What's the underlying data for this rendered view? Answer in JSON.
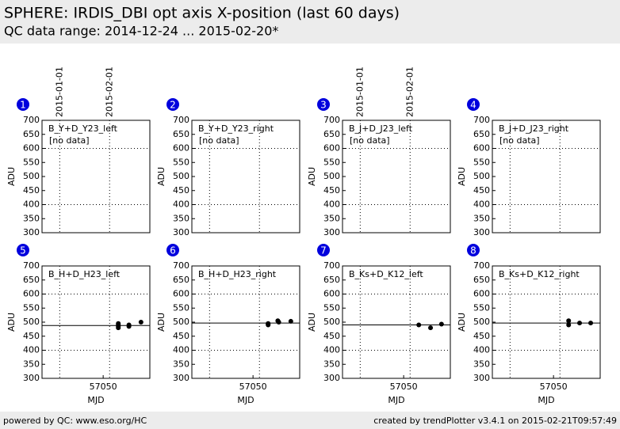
{
  "header": {
    "title": "SPHERE: IRDIS_DBI opt axis X-position (last 60 days)",
    "subtitle": "QC data range: 2014-12-24 ... 2015-02-20*"
  },
  "chart_data": [
    {
      "type": "scatter",
      "panel": "1",
      "title": "B_Y+D_Y23_left",
      "note": "[no data]",
      "ylabel": "ADU",
      "x": [],
      "values": [],
      "xlim": [
        57012,
        57079
      ],
      "ylim": [
        300,
        700
      ],
      "yticks": [
        300,
        350,
        400,
        450,
        500,
        550,
        600,
        650,
        700
      ],
      "grid_y": [
        400,
        600
      ],
      "vlines": [
        {
          "value": 57023,
          "label": "2015-01-01"
        },
        {
          "value": 57054,
          "label": "2015-02-01"
        }
      ],
      "color": "#000000"
    },
    {
      "type": "scatter",
      "panel": "2",
      "title": "B_Y+D_Y23_right",
      "note": "[no data]",
      "ylabel": "ADU",
      "x": [],
      "values": [],
      "xlim": [
        57012,
        57079
      ],
      "ylim": [
        300,
        700
      ],
      "yticks": [
        300,
        350,
        400,
        450,
        500,
        550,
        600,
        650,
        700
      ],
      "grid_y": [
        400,
        600
      ],
      "vlines": [
        57023,
        57054
      ],
      "color": "#000000"
    },
    {
      "type": "scatter",
      "panel": "3",
      "title": "B_J+D_J23_left",
      "note": "[no data]",
      "ylabel": "ADU",
      "x": [],
      "values": [],
      "xlim": [
        57012,
        57079
      ],
      "ylim": [
        300,
        700
      ],
      "yticks": [
        300,
        350,
        400,
        450,
        500,
        550,
        600,
        650,
        700
      ],
      "grid_y": [
        400,
        600
      ],
      "vlines": [
        {
          "value": 57023,
          "label": "2015-01-01"
        },
        {
          "value": 57054,
          "label": "2015-02-01"
        }
      ],
      "color": "#000000"
    },
    {
      "type": "scatter",
      "panel": "4",
      "title": "B_J+D_J23_right",
      "note": "[no data]",
      "ylabel": "ADU",
      "x": [],
      "values": [],
      "xlim": [
        57012,
        57079
      ],
      "ylim": [
        300,
        700
      ],
      "yticks": [
        300,
        350,
        400,
        450,
        500,
        550,
        600,
        650,
        700
      ],
      "grid_y": [
        400,
        600
      ],
      "vlines": [
        57023,
        57054
      ],
      "color": "#000000"
    },
    {
      "type": "scatter",
      "panel": "5",
      "title": "B_H+D_H23_left",
      "ylabel": "ADU",
      "xlabel": "MJD",
      "x": [
        57059.4,
        57059.4,
        57059.4,
        57059.4,
        57066,
        57066,
        57073.5
      ],
      "values": [
        490,
        495,
        485,
        480,
        490,
        485,
        500
      ],
      "hline": 488,
      "xlim": [
        57012,
        57079
      ],
      "xticks": [
        57050
      ],
      "ylim": [
        300,
        700
      ],
      "yticks": [
        300,
        350,
        400,
        450,
        500,
        550,
        600,
        650,
        700
      ],
      "grid_y": [
        400,
        600
      ],
      "vlines": [
        57023,
        57054
      ],
      "color": "#000000"
    },
    {
      "type": "scatter",
      "panel": "6",
      "title": "B_H+D_H23_right",
      "ylabel": "ADU",
      "xlabel": "MJD",
      "x": [
        57059.4,
        57059.4,
        57059.4,
        57065.4,
        57066,
        57073.5
      ],
      "values": [
        492,
        495,
        490,
        505,
        500,
        503
      ],
      "hline": 497,
      "xlim": [
        57012,
        57079
      ],
      "xticks": [
        57050
      ],
      "ylim": [
        300,
        700
      ],
      "yticks": [
        300,
        350,
        400,
        450,
        500,
        550,
        600,
        650,
        700
      ],
      "grid_y": [
        400,
        600
      ],
      "vlines": [
        57023,
        57054
      ],
      "color": "#000000"
    },
    {
      "type": "scatter",
      "panel": "7",
      "title": "B_Ks+D_K12_left",
      "ylabel": "ADU",
      "xlabel": "MJD",
      "x": [
        57059.4,
        57066.7,
        57073.5
      ],
      "values": [
        490,
        480,
        493
      ],
      "hline": 490,
      "xlim": [
        57012,
        57079
      ],
      "xticks": [
        57050
      ],
      "ylim": [
        300,
        700
      ],
      "yticks": [
        300,
        350,
        400,
        450,
        500,
        550,
        600,
        650,
        700
      ],
      "grid_y": [
        400,
        600
      ],
      "vlines": [
        57023,
        57054
      ],
      "color": "#000000"
    },
    {
      "type": "scatter",
      "panel": "8",
      "title": "B_Ks+D_K12_right",
      "ylabel": "ADU",
      "xlabel": "MJD",
      "x": [
        57059.4,
        57059.4,
        57066.2,
        57073.1
      ],
      "values": [
        505,
        490,
        497,
        497
      ],
      "hline": 497,
      "xlim": [
        57012,
        57079
      ],
      "xticks": [
        57050
      ],
      "ylim": [
        300,
        700
      ],
      "yticks": [
        300,
        350,
        400,
        450,
        500,
        550,
        600,
        650,
        700
      ],
      "grid_y": [
        400,
        600
      ],
      "vlines": [
        57023,
        57054
      ],
      "color": "#000000"
    }
  ],
  "footer": {
    "left": "powered by QC: www.eso.org/HC",
    "right": "created by trendPlotter v3.4.1 on 2015-02-21T09:57:49"
  }
}
